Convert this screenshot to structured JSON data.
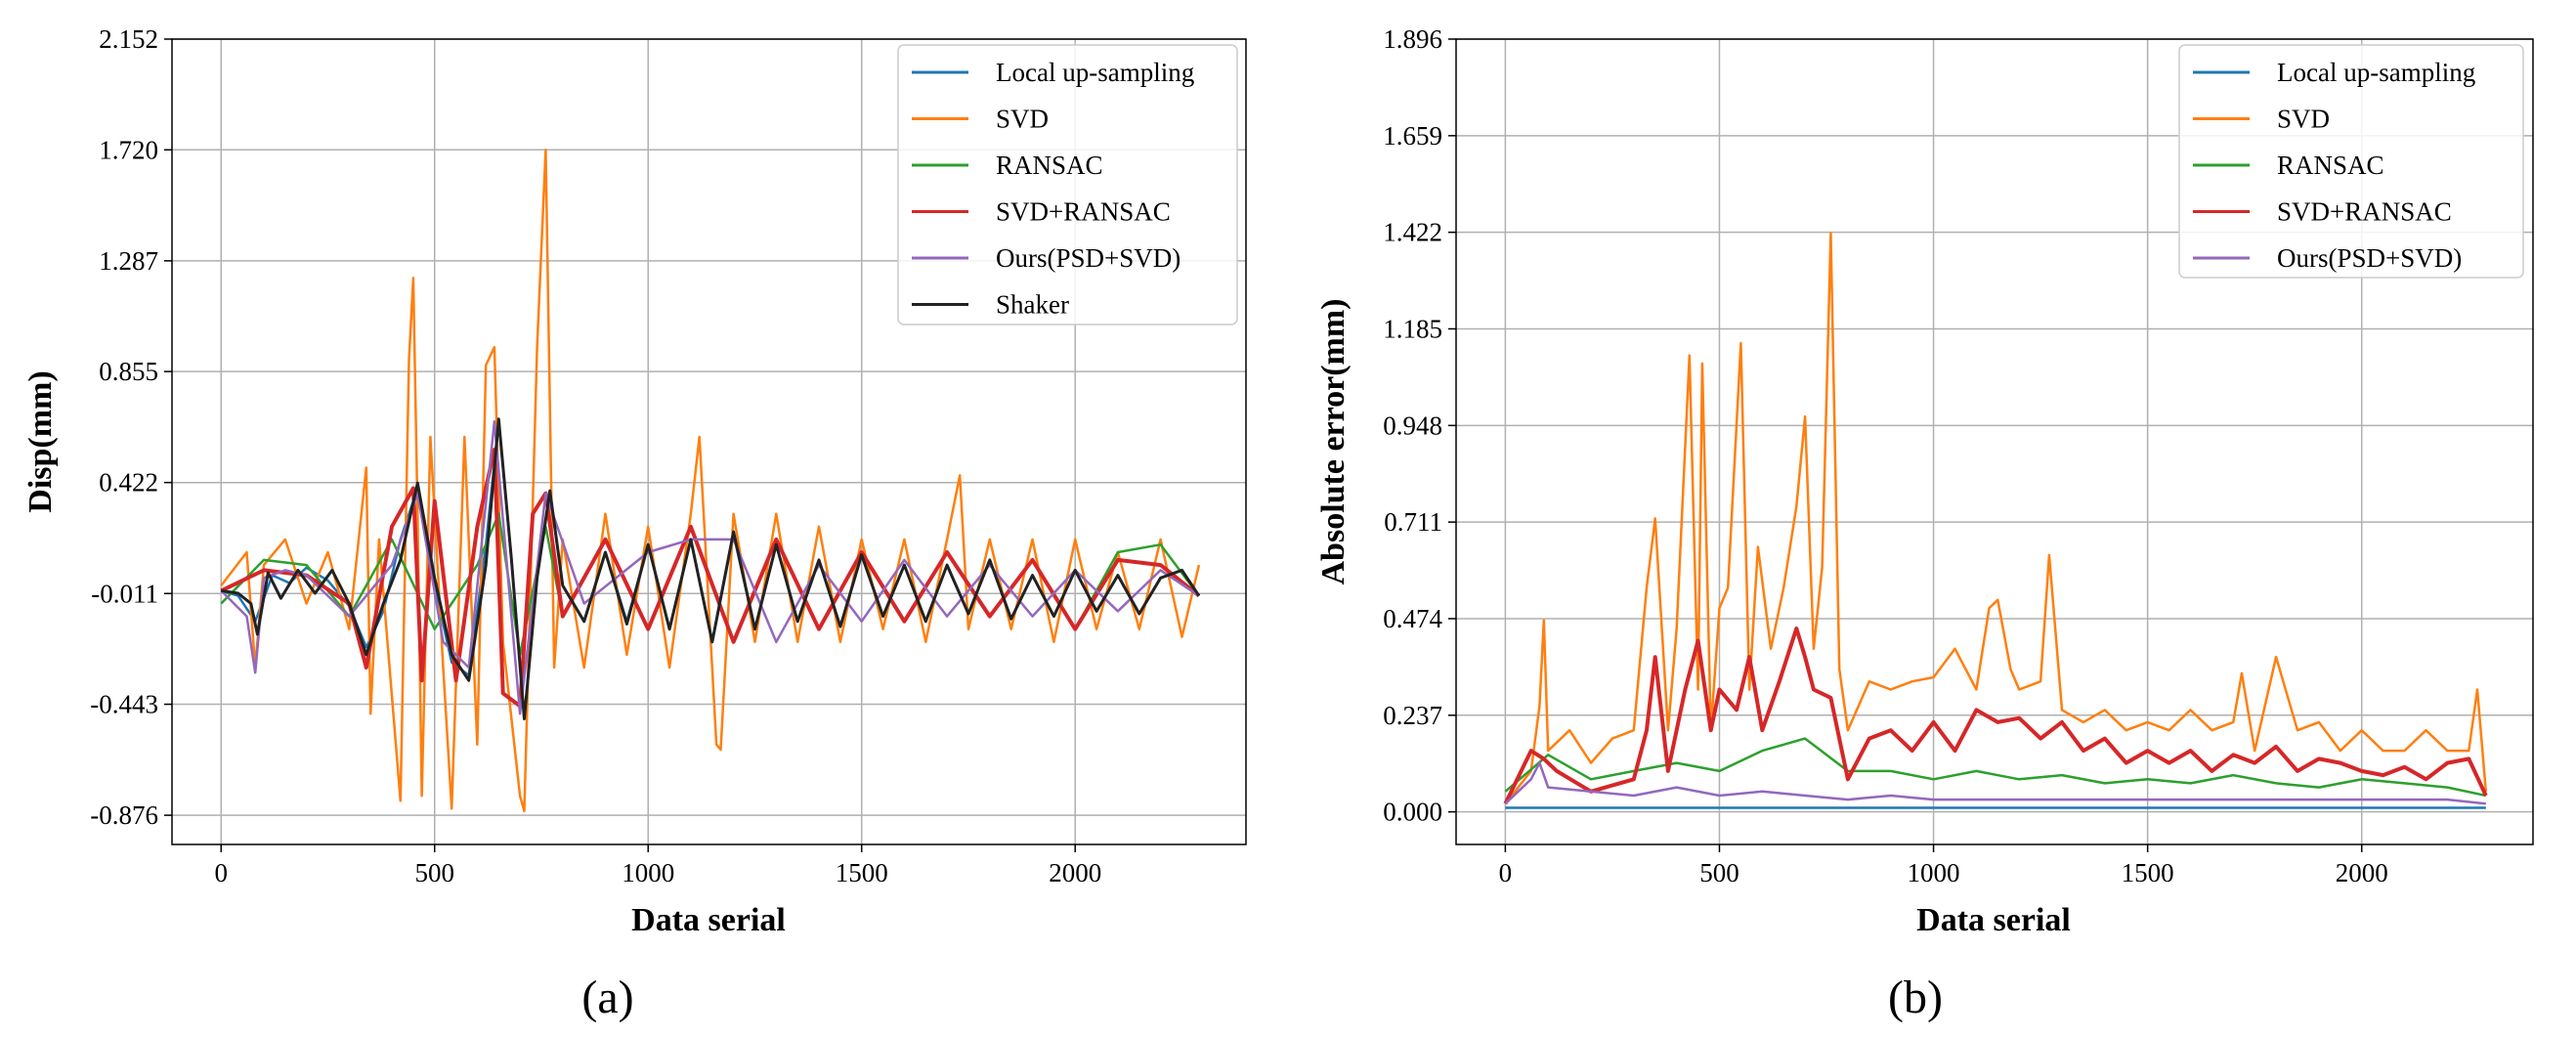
{
  "colors": {
    "local_upsampling": "#1f77b4",
    "svd": "#ff7f0e",
    "ransac": "#2ca02c",
    "svd_ransac": "#d62728",
    "ours": "#9467bd",
    "shaker": "#222222"
  },
  "chart_data": [
    {
      "type": "line",
      "panel_label": "(a)",
      "xlabel": "Data serial",
      "ylabel": "Disp(mm)",
      "xlim": [
        -115,
        2400
      ],
      "ylim": [
        -0.99,
        2.152
      ],
      "xticks": [
        0,
        500,
        1000,
        1500,
        2000
      ],
      "xtick_labels": [
        "0",
        "500",
        "1000",
        "1500",
        "2000"
      ],
      "yticks": [
        -0.876,
        -0.443,
        -0.011,
        0.422,
        0.855,
        1.287,
        1.72,
        2.152
      ],
      "ytick_labels": [
        "-0.876",
        "-0.443",
        "-0.011",
        "0.422",
        "0.855",
        "1.287",
        "1.720",
        "2.152"
      ],
      "grid": true,
      "legend_position": "top-right",
      "legend": [
        "Local up-sampling",
        "SVD",
        "RANSAC",
        "SVD+RANSAC",
        "Ours(PSD+SVD)",
        "Shaker"
      ],
      "series": [
        {
          "name": "Local up-sampling",
          "color": "#1f77b4",
          "x": [
            0,
            40,
            80,
            120,
            160,
            200,
            250,
            300,
            340,
            380,
            420,
            460,
            500,
            540,
            580,
            620,
            650,
            680,
            710,
            740,
            770,
            800,
            850,
            900,
            950,
            1000,
            1050,
            1100,
            1150,
            1200,
            1250,
            1300,
            1350,
            1400,
            1450,
            1500,
            1550,
            1600,
            1650,
            1700,
            1750,
            1800,
            1850,
            1900,
            1950,
            2000,
            2050,
            2100,
            2150,
            2200,
            2250,
            2290
          ],
          "values": [
            0.0,
            -0.02,
            -0.12,
            0.06,
            0.03,
            0.09,
            0.04,
            -0.06,
            -0.22,
            -0.08,
            0.2,
            0.4,
            0.02,
            -0.28,
            -0.33,
            0.18,
            0.66,
            0.12,
            -0.5,
            0.05,
            0.38,
            0.02,
            -0.12,
            0.15,
            -0.12,
            0.18,
            -0.15,
            0.2,
            -0.2,
            0.22,
            -0.15,
            0.18,
            -0.12,
            0.12,
            -0.14,
            0.14,
            -0.1,
            0.1,
            -0.12,
            0.1,
            -0.09,
            0.12,
            -0.11,
            0.06,
            -0.1,
            0.08,
            -0.08,
            0.06,
            -0.09,
            0.05,
            0.08,
            -0.02
          ]
        },
        {
          "name": "SVD",
          "color": "#ff7f0e",
          "x": [
            0,
            60,
            80,
            100,
            150,
            200,
            250,
            300,
            340,
            350,
            370,
            420,
            440,
            450,
            460,
            470,
            490,
            520,
            540,
            570,
            600,
            620,
            640,
            660,
            700,
            710,
            740,
            760,
            780,
            800,
            850,
            900,
            950,
            1000,
            1050,
            1100,
            1120,
            1160,
            1170,
            1200,
            1250,
            1300,
            1350,
            1400,
            1450,
            1500,
            1550,
            1600,
            1650,
            1700,
            1730,
            1750,
            1800,
            1850,
            1900,
            1950,
            2000,
            2050,
            2100,
            2150,
            2200,
            2250,
            2290
          ],
          "values": [
            0.02,
            0.15,
            -0.3,
            0.1,
            0.2,
            -0.05,
            0.15,
            -0.15,
            0.48,
            -0.48,
            0.2,
            -0.82,
            0.9,
            1.22,
            0.3,
            -0.8,
            0.6,
            -0.3,
            -0.85,
            0.6,
            -0.6,
            0.88,
            0.95,
            -0.2,
            -0.8,
            -0.86,
            0.95,
            1.72,
            -0.3,
            0.2,
            -0.3,
            0.3,
            -0.25,
            0.25,
            -0.3,
            0.3,
            0.6,
            -0.6,
            -0.62,
            0.3,
            -0.2,
            0.3,
            -0.2,
            0.25,
            -0.2,
            0.2,
            -0.15,
            0.2,
            -0.2,
            0.2,
            0.45,
            -0.15,
            0.2,
            -0.15,
            0.2,
            -0.2,
            0.2,
            -0.15,
            0.15,
            -0.15,
            0.2,
            -0.18,
            0.1
          ]
        },
        {
          "name": "RANSAC",
          "color": "#2ca02c",
          "x": [
            0,
            100,
            200,
            300,
            400,
            500,
            600,
            650,
            700,
            760,
            800,
            900,
            1000,
            1100,
            1200,
            1300,
            1400,
            1500,
            1600,
            1700,
            1800,
            1900,
            2000,
            2100,
            2200,
            2290
          ],
          "values": [
            -0.05,
            0.12,
            0.1,
            -0.1,
            0.2,
            -0.15,
            0.1,
            0.3,
            -0.25,
            0.25,
            -0.1,
            0.2,
            -0.15,
            0.25,
            -0.2,
            0.2,
            -0.15,
            0.15,
            -0.12,
            0.15,
            -0.1,
            0.12,
            -0.15,
            0.15,
            0.18,
            -0.02
          ]
        },
        {
          "name": "SVD+RANSAC",
          "color": "#d62728",
          "x": [
            0,
            100,
            200,
            300,
            340,
            400,
            450,
            470,
            500,
            550,
            600,
            640,
            660,
            700,
            730,
            760,
            800,
            900,
            1000,
            1100,
            1200,
            1300,
            1400,
            1500,
            1600,
            1700,
            1800,
            1900,
            2000,
            2100,
            2200,
            2290
          ],
          "values": [
            0.0,
            0.08,
            0.06,
            -0.05,
            -0.3,
            0.25,
            0.4,
            -0.35,
            0.35,
            -0.35,
            0.25,
            0.55,
            -0.4,
            -0.45,
            0.3,
            0.38,
            -0.1,
            0.2,
            -0.15,
            0.25,
            -0.2,
            0.2,
            -0.15,
            0.15,
            -0.12,
            0.15,
            -0.1,
            0.12,
            -0.15,
            0.12,
            0.1,
            -0.02
          ]
        },
        {
          "name": "Ours(PSD+SVD)",
          "color": "#9467bd",
          "x": [
            0,
            60,
            80,
            100,
            150,
            200,
            300,
            400,
            460,
            520,
            580,
            640,
            700,
            760,
            850,
            1000,
            1100,
            1200,
            1300,
            1400,
            1500,
            1600,
            1700,
            1800,
            1900,
            2000,
            2100,
            2200,
            2290
          ],
          "values": [
            0.0,
            -0.1,
            -0.32,
            0.05,
            0.08,
            0.06,
            -0.1,
            0.1,
            0.38,
            -0.2,
            -0.3,
            0.66,
            -0.48,
            0.38,
            -0.05,
            0.15,
            0.2,
            0.2,
            -0.2,
            0.1,
            -0.12,
            0.12,
            -0.1,
            0.1,
            -0.1,
            0.08,
            -0.08,
            0.08,
            -0.02
          ]
        },
        {
          "name": "Shaker",
          "color": "#222222",
          "x": [
            0,
            40,
            70,
            85,
            110,
            140,
            180,
            220,
            260,
            300,
            340,
            380,
            420,
            460,
            500,
            540,
            580,
            620,
            650,
            680,
            710,
            740,
            770,
            800,
            850,
            900,
            950,
            1000,
            1050,
            1100,
            1150,
            1200,
            1250,
            1300,
            1350,
            1400,
            1450,
            1500,
            1550,
            1600,
            1650,
            1700,
            1750,
            1800,
            1850,
            1900,
            1950,
            2000,
            2050,
            2100,
            2150,
            2200,
            2250,
            2290
          ],
          "values": [
            0.0,
            -0.01,
            -0.05,
            -0.17,
            0.07,
            -0.03,
            0.08,
            -0.01,
            0.08,
            -0.05,
            -0.25,
            -0.05,
            0.12,
            0.42,
            0.05,
            -0.25,
            -0.35,
            0.1,
            0.67,
            0.12,
            -0.5,
            0.05,
            0.39,
            0.02,
            -0.12,
            0.15,
            -0.13,
            0.18,
            -0.15,
            0.2,
            -0.2,
            0.23,
            -0.15,
            0.18,
            -0.12,
            0.12,
            -0.14,
            0.14,
            -0.1,
            0.1,
            -0.12,
            0.1,
            -0.09,
            0.12,
            -0.11,
            0.06,
            -0.1,
            0.08,
            -0.08,
            0.06,
            -0.09,
            0.05,
            0.08,
            -0.02
          ]
        }
      ]
    },
    {
      "type": "line",
      "panel_label": "(b)",
      "xlabel": "Data serial",
      "ylabel": "Absolute error(mm)",
      "xlim": [
        -115,
        2400
      ],
      "ylim": [
        -0.08,
        1.896
      ],
      "xticks": [
        0,
        500,
        1000,
        1500,
        2000
      ],
      "xtick_labels": [
        "0",
        "500",
        "1000",
        "1500",
        "2000"
      ],
      "yticks": [
        0.0,
        0.237,
        0.474,
        0.711,
        0.948,
        1.185,
        1.422,
        1.659,
        1.896
      ],
      "ytick_labels": [
        "0.000",
        "0.237",
        "0.474",
        "0.711",
        "0.948",
        "1.185",
        "1.422",
        "1.659",
        "1.896"
      ],
      "grid": true,
      "legend_position": "top-right",
      "legend": [
        "Local up-sampling",
        "SVD",
        "RANSAC",
        "SVD+RANSAC",
        "Ours(PSD+SVD)"
      ],
      "series": [
        {
          "name": "Local up-sampling",
          "color": "#1f77b4",
          "x": [
            0,
            500,
            1000,
            1500,
            2000,
            2290
          ],
          "values": [
            0.01,
            0.01,
            0.01,
            0.01,
            0.01,
            0.01
          ]
        },
        {
          "name": "SVD",
          "color": "#ff7f0e",
          "x": [
            0,
            60,
            80,
            90,
            100,
            150,
            200,
            250,
            300,
            330,
            350,
            380,
            400,
            430,
            450,
            460,
            480,
            500,
            520,
            550,
            570,
            590,
            620,
            650,
            680,
            700,
            720,
            740,
            760,
            780,
            800,
            850,
            900,
            950,
            1000,
            1050,
            1100,
            1130,
            1150,
            1180,
            1200,
            1250,
            1270,
            1300,
            1350,
            1400,
            1450,
            1500,
            1550,
            1600,
            1650,
            1700,
            1720,
            1750,
            1800,
            1850,
            1900,
            1950,
            2000,
            2050,
            2100,
            2150,
            2200,
            2250,
            2270,
            2290
          ],
          "values": [
            0.02,
            0.1,
            0.26,
            0.47,
            0.15,
            0.2,
            0.12,
            0.18,
            0.2,
            0.55,
            0.72,
            0.2,
            0.45,
            1.12,
            0.3,
            1.1,
            0.2,
            0.5,
            0.55,
            1.15,
            0.3,
            0.65,
            0.4,
            0.55,
            0.75,
            0.97,
            0.4,
            0.6,
            1.42,
            0.35,
            0.2,
            0.32,
            0.3,
            0.32,
            0.33,
            0.4,
            0.3,
            0.5,
            0.52,
            0.35,
            0.3,
            0.32,
            0.63,
            0.25,
            0.22,
            0.25,
            0.2,
            0.22,
            0.2,
            0.25,
            0.2,
            0.22,
            0.34,
            0.15,
            0.38,
            0.2,
            0.22,
            0.15,
            0.2,
            0.15,
            0.15,
            0.2,
            0.15,
            0.15,
            0.3,
            0.05
          ]
        },
        {
          "name": "RANSAC",
          "color": "#2ca02c",
          "x": [
            0,
            100,
            200,
            300,
            400,
            500,
            600,
            700,
            800,
            900,
            1000,
            1100,
            1200,
            1300,
            1400,
            1500,
            1600,
            1700,
            1800,
            1900,
            2000,
            2100,
            2200,
            2290
          ],
          "values": [
            0.05,
            0.14,
            0.08,
            0.1,
            0.12,
            0.1,
            0.15,
            0.18,
            0.1,
            0.1,
            0.08,
            0.1,
            0.08,
            0.09,
            0.07,
            0.08,
            0.07,
            0.09,
            0.07,
            0.06,
            0.08,
            0.07,
            0.06,
            0.04
          ]
        },
        {
          "name": "SVD+RANSAC",
          "color": "#d62728",
          "x": [
            0,
            60,
            90,
            120,
            200,
            300,
            330,
            350,
            380,
            420,
            450,
            480,
            500,
            540,
            570,
            600,
            640,
            680,
            700,
            720,
            760,
            800,
            850,
            900,
            950,
            1000,
            1050,
            1100,
            1150,
            1200,
            1250,
            1300,
            1350,
            1400,
            1450,
            1500,
            1550,
            1600,
            1650,
            1700,
            1750,
            1800,
            1850,
            1900,
            1950,
            2000,
            2050,
            2100,
            2150,
            2200,
            2250,
            2290
          ],
          "values": [
            0.02,
            0.15,
            0.13,
            0.1,
            0.05,
            0.08,
            0.2,
            0.38,
            0.1,
            0.3,
            0.42,
            0.2,
            0.3,
            0.25,
            0.38,
            0.2,
            0.32,
            0.45,
            0.38,
            0.3,
            0.28,
            0.08,
            0.18,
            0.2,
            0.15,
            0.22,
            0.15,
            0.25,
            0.22,
            0.23,
            0.18,
            0.22,
            0.15,
            0.18,
            0.12,
            0.15,
            0.12,
            0.15,
            0.1,
            0.14,
            0.12,
            0.16,
            0.1,
            0.13,
            0.12,
            0.1,
            0.09,
            0.11,
            0.08,
            0.12,
            0.13,
            0.04
          ]
        },
        {
          "name": "Ours(PSD+SVD)",
          "color": "#9467bd",
          "x": [
            0,
            60,
            80,
            100,
            200,
            300,
            400,
            500,
            600,
            700,
            800,
            900,
            1000,
            1200,
            1400,
            1600,
            1800,
            2000,
            2200,
            2290
          ],
          "values": [
            0.02,
            0.08,
            0.12,
            0.06,
            0.05,
            0.04,
            0.06,
            0.04,
            0.05,
            0.04,
            0.03,
            0.04,
            0.03,
            0.03,
            0.03,
            0.03,
            0.03,
            0.03,
            0.03,
            0.02
          ]
        }
      ]
    }
  ]
}
